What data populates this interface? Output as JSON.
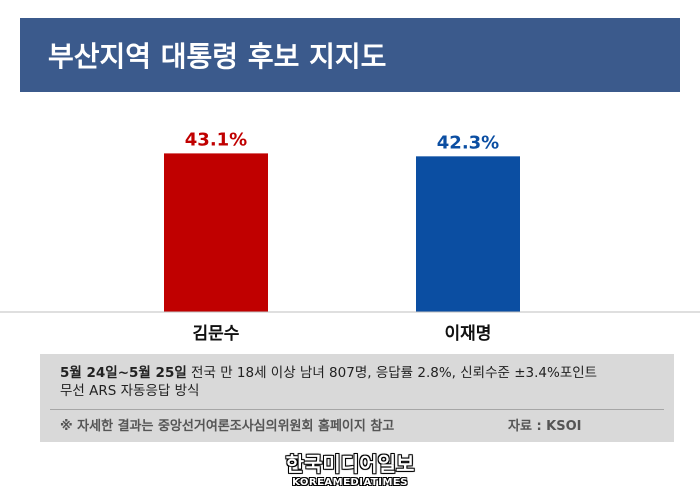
{
  "header": {
    "title": "부산지역 대통령 후보 지지도"
  },
  "chart_data": {
    "type": "bar",
    "categories": [
      "김문수",
      "이재명"
    ],
    "values": [
      43.1,
      42.3
    ],
    "value_labels": [
      "43.1%",
      "42.3%"
    ],
    "colors": [
      "#c00000",
      "#0b4ea2"
    ],
    "label_colors": [
      "#c00000",
      "#0b4ea2"
    ],
    "ylim": [
      0,
      50
    ],
    "grid": false,
    "title": "",
    "xlabel": "",
    "ylabel": ""
  },
  "footer": {
    "survey_dates": "5월 24일~5월 25일",
    "survey_detail_1": " 전국 만 18세 이상 남녀 807명, 응답률 2.8%, 신뢰수준 ±3.4%포인트",
    "survey_detail_2": "무선 ARS 자동응답 방식",
    "note": "※ 자세한 결과는 중앙선거여론조사심의위원회 홈페이지 참고",
    "source": "자료 : KSOI"
  },
  "logo": {
    "korean": "한국미디어일보",
    "english": "KOREAMEDIATIMES"
  }
}
